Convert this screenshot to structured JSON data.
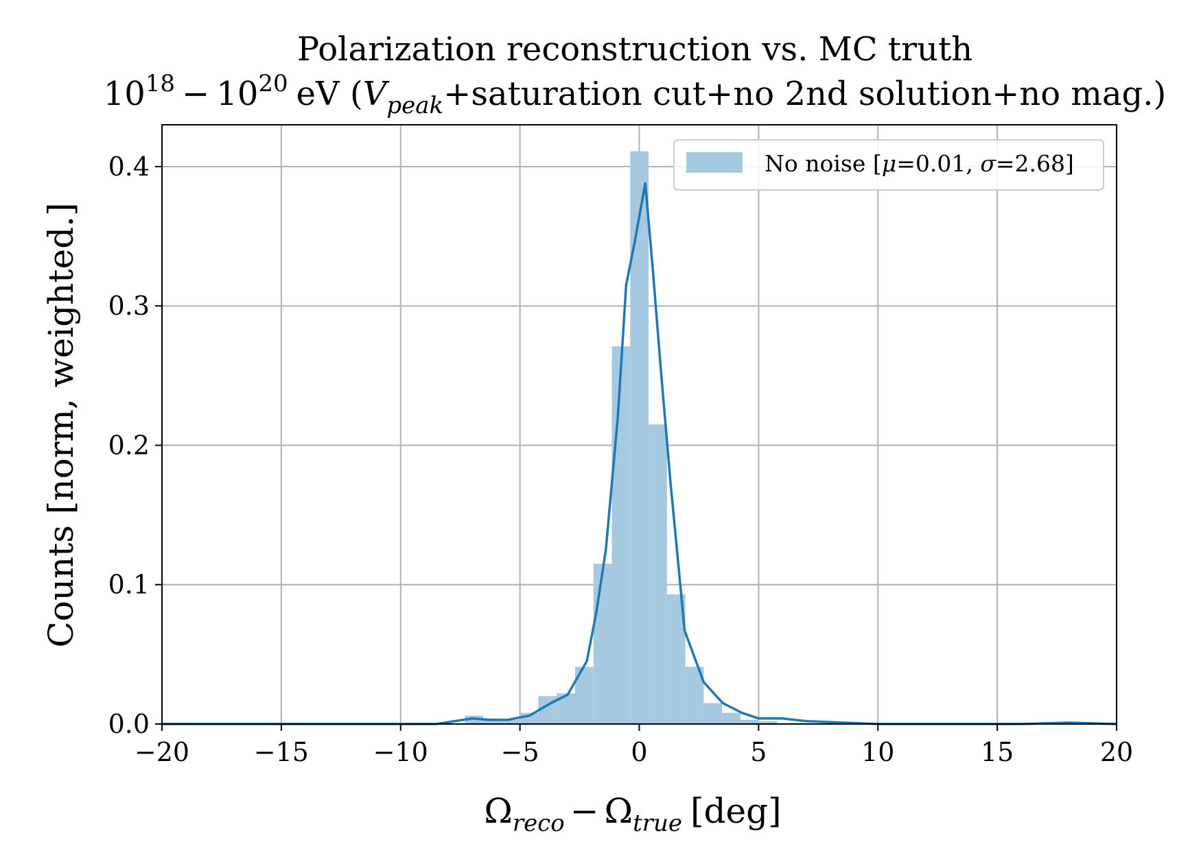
{
  "chart_data": {
    "type": "histogram",
    "title": "Polarization reconstruction vs. MC truth",
    "subtitle": {
      "energy_base_low": "10",
      "energy_exp_low": "18",
      "dash": "−",
      "energy_base_high": "10",
      "energy_exp_high": "20",
      "unit_open": "eV (",
      "v_symbol": "V",
      "v_subscript": "peak",
      "rest": "+saturation cut+no 2nd solution+no mag.)"
    },
    "xlabel": {
      "symbol_a": "Ω",
      "sub_a": "reco",
      "minus": "−",
      "symbol_b": "Ω",
      "sub_b": "true",
      "unit": "[deg]"
    },
    "ylabel": "Counts [norm, weighted.]",
    "xlim": [
      -20,
      20
    ],
    "ylim": [
      0,
      0.43
    ],
    "xticks": [
      -20,
      -15,
      -10,
      -5,
      0,
      5,
      10,
      15,
      20
    ],
    "yticks": [
      0.0,
      0.1,
      0.2,
      0.3,
      0.4
    ],
    "xtick_labels": [
      "−20",
      "−15",
      "−10",
      "−5",
      "0",
      "5",
      "10",
      "15",
      "20"
    ],
    "ytick_labels": [
      "0.0",
      "0.1",
      "0.2",
      "0.3",
      "0.4"
    ],
    "grid": true,
    "legend_position": "top-right",
    "legend": {
      "label_prefix": "No noise [",
      "mu_symbol": "μ",
      "mu_text": "=0.01, ",
      "sigma_symbol": "σ",
      "sigma_text": "=2.68]"
    },
    "colors": {
      "bars": "#a6c9e2",
      "line": "#1f77b4",
      "grid": "#b0b0b0"
    },
    "histogram": {
      "bin_width": 0.77,
      "bins": [
        {
          "x0": -7.31,
          "value": 0.006
        },
        {
          "x0": -6.54,
          "value": 0.003
        },
        {
          "x0": -5.77,
          "value": 0.003
        },
        {
          "x0": -5.0,
          "value": 0.008
        },
        {
          "x0": -4.23,
          "value": 0.02
        },
        {
          "x0": -3.46,
          "value": 0.022
        },
        {
          "x0": -2.69,
          "value": 0.041
        },
        {
          "x0": -1.92,
          "value": 0.115
        },
        {
          "x0": -1.15,
          "value": 0.271
        },
        {
          "x0": -0.38,
          "value": 0.411
        },
        {
          "x0": 0.39,
          "value": 0.215
        },
        {
          "x0": 1.16,
          "value": 0.093
        },
        {
          "x0": 1.93,
          "value": 0.041
        },
        {
          "x0": 2.7,
          "value": 0.015
        },
        {
          "x0": 3.47,
          "value": 0.008
        },
        {
          "x0": 4.24,
          "value": 0.003
        },
        {
          "x0": 5.01,
          "value": 0.002
        }
      ]
    },
    "curve": {
      "x": [
        -20,
        -8.5,
        -7.0,
        -6.3,
        -5.5,
        -4.6,
        -3.7,
        -3.0,
        -2.2,
        -1.8,
        -1.4,
        -0.9,
        -0.55,
        -0.2,
        0.25,
        0.55,
        0.9,
        1.3,
        1.9,
        2.7,
        3.5,
        4.3,
        5.0,
        6.0,
        7.0,
        10.0,
        16.0,
        18.0,
        20.0
      ],
      "y": [
        0.0,
        0.0,
        0.004,
        0.003,
        0.003,
        0.006,
        0.015,
        0.021,
        0.045,
        0.08,
        0.125,
        0.22,
        0.315,
        0.345,
        0.388,
        0.33,
        0.255,
        0.175,
        0.067,
        0.03,
        0.015,
        0.008,
        0.004,
        0.004,
        0.002,
        0.0,
        0.0,
        0.001,
        0.0
      ]
    }
  }
}
